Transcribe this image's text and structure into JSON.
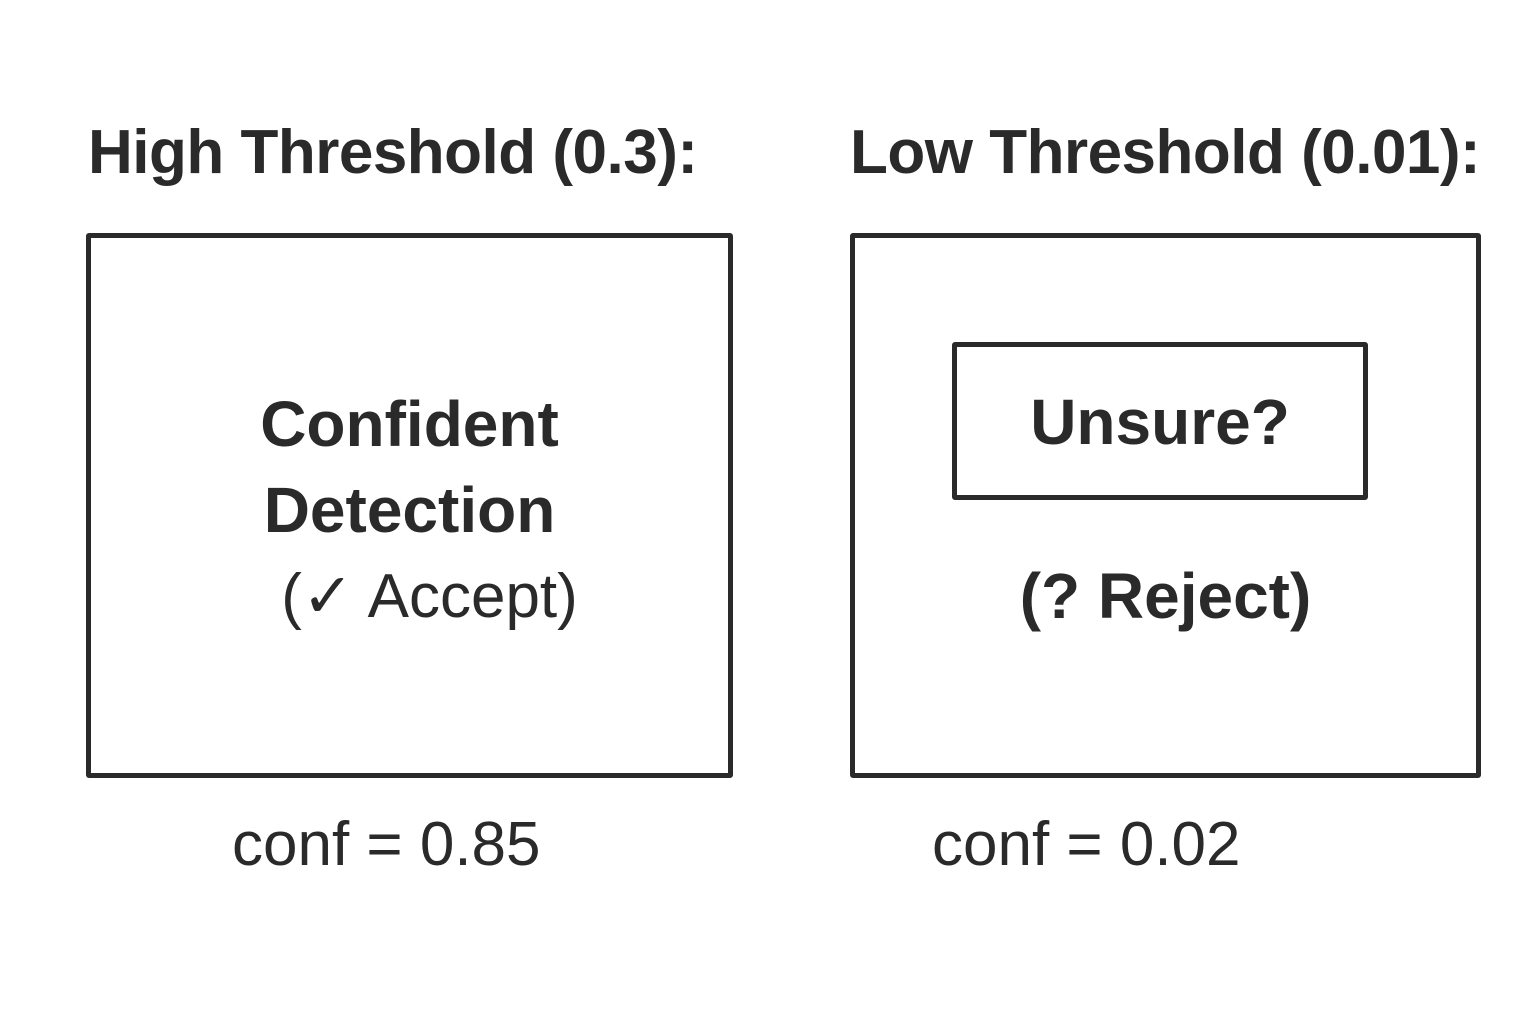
{
  "left_panel": {
    "heading": "High Threshold (0.3):",
    "detection_line1": "Confident",
    "detection_line2": "Detection",
    "decision": "(✓ Accept)",
    "confidence": "conf = 0.85"
  },
  "right_panel": {
    "heading": "Low Threshold (0.01):",
    "inner_label": "Unsure?",
    "decision": "(? Reject)",
    "confidence": "conf = 0.02"
  }
}
